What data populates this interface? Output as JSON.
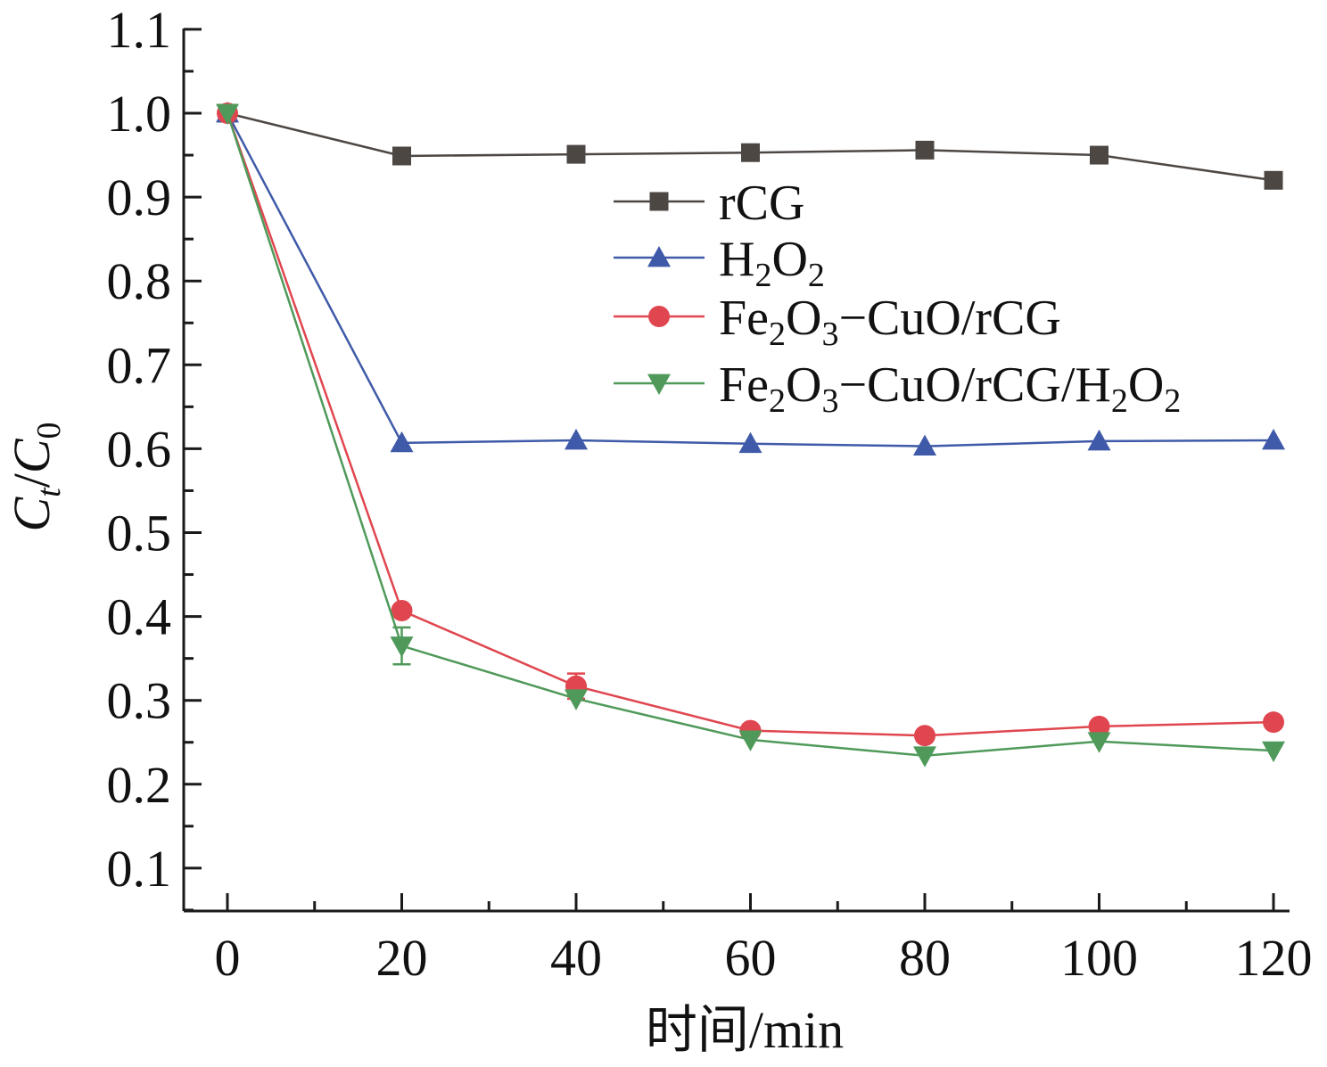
{
  "chart_data": {
    "type": "line",
    "x": [
      0,
      20,
      40,
      60,
      80,
      100,
      120
    ],
    "xlim": [
      -5,
      122
    ],
    "ylim": [
      0.05,
      1.1
    ],
    "xticks": [
      0,
      20,
      40,
      60,
      80,
      100,
      120
    ],
    "xtick_labels": [
      "0",
      "20",
      "40",
      "60",
      "80",
      "100",
      "120"
    ],
    "yticks": [
      0.1,
      0.2,
      0.3,
      0.4,
      0.5,
      0.6,
      0.7,
      0.8,
      0.9,
      1.0,
      1.1
    ],
    "ytick_labels": [
      "0.1",
      "0.2",
      "0.3",
      "0.4",
      "0.5",
      "0.6",
      "0.7",
      "0.8",
      "0.9",
      "1.0",
      "1.1"
    ],
    "xlabel": "时间/min",
    "ylabel": {
      "main1": "C",
      "sub1": "t",
      "slash": "/",
      "main2": "C",
      "sub2": "0"
    },
    "grid": false,
    "legend_position": "top-right",
    "series": [
      {
        "key": "rcg",
        "name": "rCG",
        "name_parts": [
          {
            "t": "rCG",
            "sub": false
          }
        ],
        "color": "#4d4744",
        "marker": "square",
        "values": [
          1.0,
          0.949,
          0.951,
          0.953,
          0.956,
          0.95,
          0.92
        ],
        "errors": [
          0,
          0,
          0,
          0,
          0,
          0,
          0
        ]
      },
      {
        "key": "h2o2",
        "name": "H2O2",
        "name_parts": [
          {
            "t": "H",
            "sub": false
          },
          {
            "t": "2",
            "sub": true
          },
          {
            "t": "O",
            "sub": false
          },
          {
            "t": "2",
            "sub": true
          }
        ],
        "color": "#3f5aa8",
        "marker": "triangle-up",
        "values": [
          1.0,
          0.607,
          0.61,
          0.606,
          0.603,
          0.609,
          0.61
        ],
        "errors": [
          0,
          0,
          0,
          0,
          0,
          0,
          0
        ]
      },
      {
        "key": "fe2o3-cuo-rcg",
        "name": "Fe2O3−CuO/rCG",
        "name_parts": [
          {
            "t": "Fe",
            "sub": false
          },
          {
            "t": "2",
            "sub": true
          },
          {
            "t": "O",
            "sub": false
          },
          {
            "t": "3",
            "sub": true
          },
          {
            "t": "−CuO/rCG",
            "sub": false
          }
        ],
        "color": "#e0464f",
        "marker": "circle",
        "values": [
          1.0,
          0.407,
          0.317,
          0.264,
          0.258,
          0.269,
          0.274
        ],
        "errors": [
          0,
          0,
          0.015,
          0,
          0,
          0,
          0
        ]
      },
      {
        "key": "fe2o3-cuo-rcg-h2o2",
        "name": "Fe2O3−CuO/rCG/H2O2",
        "name_parts": [
          {
            "t": "Fe",
            "sub": false
          },
          {
            "t": "2",
            "sub": true
          },
          {
            "t": "O",
            "sub": false
          },
          {
            "t": "3",
            "sub": true
          },
          {
            "t": "−CuO/rCG/H",
            "sub": false
          },
          {
            "t": "2",
            "sub": true
          },
          {
            "t": "O",
            "sub": false
          },
          {
            "t": "2",
            "sub": true
          }
        ],
        "color": "#4f9a5a",
        "marker": "triangle-down",
        "values": [
          1.0,
          0.365,
          0.302,
          0.253,
          0.234,
          0.251,
          0.24
        ],
        "errors": [
          0,
          0.022,
          0,
          0,
          0,
          0,
          0
        ]
      }
    ]
  }
}
